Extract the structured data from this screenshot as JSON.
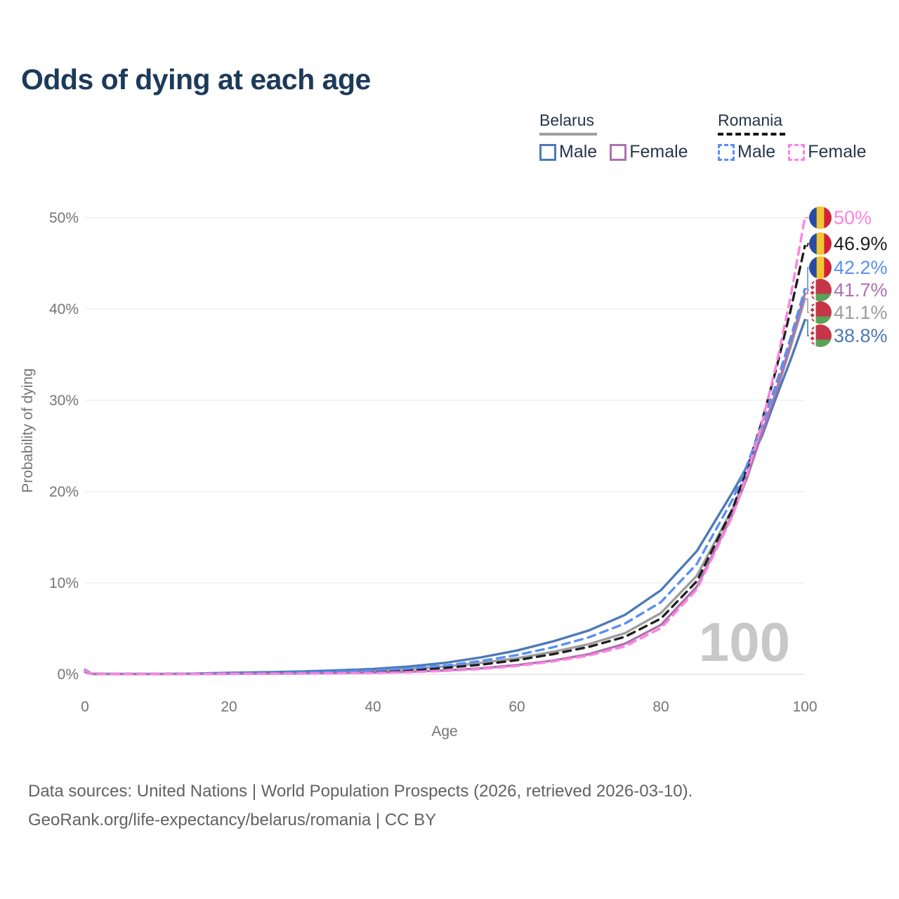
{
  "title": "Odds of dying at each age",
  "watermark": "100",
  "legend": {
    "groups": [
      {
        "id": "belarus",
        "label": "Belarus",
        "line_style": "solid",
        "underline_color": "#9f9f9f",
        "entries": [
          {
            "label": "Male",
            "color": "#4d79b8"
          },
          {
            "label": "Female",
            "color": "#ad72b0"
          }
        ]
      },
      {
        "id": "romania",
        "label": "Romania",
        "line_style": "dashed",
        "underline_color": "#141414",
        "entries": [
          {
            "label": "Male",
            "color": "#5a8ff2"
          },
          {
            "label": "Female",
            "color": "#ff82e2"
          }
        ]
      }
    ]
  },
  "footer": {
    "line1": "Data sources: United Nations | World Population Prospects (2026, retrieved 2026-03-10).",
    "line2": "GeoRank.org/life-expectancy/belarus/romania | CC BY"
  },
  "chart_data": {
    "type": "line",
    "title": "Odds of dying at each age",
    "xlabel": "Age",
    "ylabel": "Probability of dying",
    "xlim": [
      0,
      100
    ],
    "ylim": [
      0,
      50
    ],
    "grid": "horizontal",
    "legend_position": "top-right",
    "x_ticks": [
      {
        "value": 0,
        "label": "0"
      },
      {
        "value": 20,
        "label": "20"
      },
      {
        "value": 40,
        "label": "40"
      },
      {
        "value": 60,
        "label": "60"
      },
      {
        "value": 80,
        "label": "80"
      },
      {
        "value": 100,
        "label": "100"
      }
    ],
    "y_ticks": [
      {
        "value": 0,
        "label": "0%"
      },
      {
        "value": 10,
        "label": "10%"
      },
      {
        "value": 20,
        "label": "20%"
      },
      {
        "value": 30,
        "label": "30%"
      },
      {
        "value": 40,
        "label": "40%"
      },
      {
        "value": 50,
        "label": "50%"
      }
    ],
    "ages": [
      0,
      1,
      5,
      10,
      15,
      20,
      25,
      30,
      35,
      40,
      45,
      50,
      55,
      60,
      65,
      70,
      75,
      80,
      85,
      90,
      92,
      94,
      96,
      98,
      100
    ],
    "series": [
      {
        "id": "romania-female",
        "name": "Romania Female",
        "country": "Romania",
        "sex": "female",
        "color": "#ff82e2",
        "dash": true,
        "z": 6,
        "end_label": "50%",
        "values": [
          0.4,
          0.04,
          0.02,
          0.02,
          0.03,
          0.04,
          0.05,
          0.07,
          0.1,
          0.15,
          0.23,
          0.36,
          0.58,
          0.9,
          1.4,
          2.05,
          3.05,
          5.05,
          9.3,
          17.4,
          22.0,
          27.4,
          33.8,
          41.3,
          50.0
        ]
      },
      {
        "id": "romania-total",
        "name": "Romania",
        "country": "Romania",
        "sex": "total",
        "color": "#1f1f1f",
        "dash": true,
        "z": 4,
        "end_label": "46.9%",
        "values": [
          0.45,
          0.05,
          0.03,
          0.03,
          0.05,
          0.08,
          0.1,
          0.14,
          0.21,
          0.31,
          0.46,
          0.7,
          1.05,
          1.55,
          2.2,
          3.0,
          4.1,
          6.1,
          10.2,
          18.2,
          22.6,
          27.6,
          33.4,
          39.8,
          46.9
        ]
      },
      {
        "id": "romania-male",
        "name": "Romania Male",
        "country": "Romania",
        "sex": "male",
        "color": "#5a8ff2",
        "dash": true,
        "z": 5,
        "end_label": "42.2%",
        "values": [
          0.5,
          0.05,
          0.03,
          0.03,
          0.06,
          0.1,
          0.13,
          0.18,
          0.28,
          0.43,
          0.62,
          0.95,
          1.45,
          2.1,
          2.95,
          4.05,
          5.55,
          7.9,
          12.1,
          19.2,
          23.0,
          27.2,
          31.8,
          36.8,
          42.2
        ]
      },
      {
        "id": "belarus-female",
        "name": "Belarus Female",
        "country": "Belarus",
        "sex": "female",
        "color": "#ad72b0",
        "dash": false,
        "z": 3,
        "end_label": "41.7%",
        "values": [
          0.25,
          0.04,
          0.02,
          0.02,
          0.04,
          0.05,
          0.07,
          0.09,
          0.13,
          0.19,
          0.28,
          0.42,
          0.65,
          1.0,
          1.5,
          2.2,
          3.35,
          5.4,
          9.6,
          17.6,
          21.6,
          26.3,
          31.0,
          36.2,
          41.7
        ]
      },
      {
        "id": "belarus-total",
        "name": "Belarus",
        "country": "Belarus",
        "sex": "total",
        "color": "#9d9d9d",
        "dash": false,
        "z": 1,
        "end_label": "41.1%",
        "values": [
          0.3,
          0.04,
          0.03,
          0.03,
          0.05,
          0.1,
          0.14,
          0.19,
          0.27,
          0.4,
          0.58,
          0.85,
          1.25,
          1.75,
          2.45,
          3.3,
          4.5,
          6.7,
          10.8,
          18.2,
          22.0,
          26.4,
          30.8,
          35.8,
          41.1
        ]
      },
      {
        "id": "belarus-male",
        "name": "Belarus Male",
        "country": "Belarus",
        "sex": "male",
        "color": "#4d79b8",
        "dash": false,
        "z": 2,
        "end_label": "38.8%",
        "values": [
          0.35,
          0.05,
          0.03,
          0.03,
          0.07,
          0.15,
          0.22,
          0.3,
          0.42,
          0.58,
          0.85,
          1.25,
          1.85,
          2.6,
          3.6,
          4.8,
          6.5,
          9.2,
          13.5,
          20.0,
          22.8,
          26.0,
          30.3,
          34.4,
          38.8
        ]
      }
    ]
  }
}
